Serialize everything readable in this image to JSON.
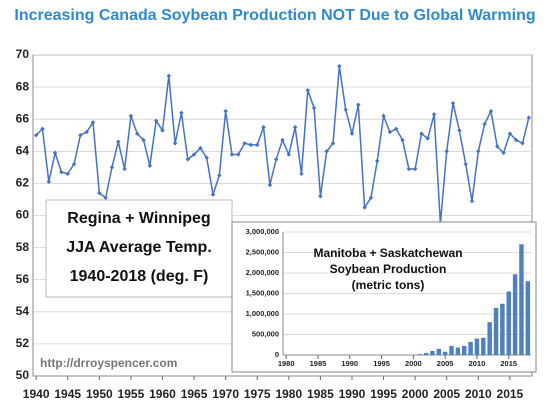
{
  "chart_data": [
    {
      "type": "line",
      "title": "Increasing Canada Soybean Production NOT Due to Global Warming",
      "label_lines": [
        "Regina + Winnipeg",
        "JJA Average Temp.",
        "1940-2018 (deg. F)"
      ],
      "source": "http://drroyspencer.com",
      "x": [
        1940,
        1941,
        1942,
        1943,
        1944,
        1945,
        1946,
        1947,
        1948,
        1949,
        1950,
        1951,
        1952,
        1953,
        1954,
        1955,
        1956,
        1957,
        1958,
        1959,
        1960,
        1961,
        1962,
        1963,
        1964,
        1965,
        1966,
        1967,
        1968,
        1969,
        1970,
        1971,
        1972,
        1973,
        1974,
        1975,
        1976,
        1977,
        1978,
        1979,
        1980,
        1981,
        1982,
        1983,
        1984,
        1985,
        1986,
        1987,
        1988,
        1989,
        1990,
        1991,
        1992,
        1993,
        1994,
        1995,
        1996,
        1997,
        1998,
        1999,
        2000,
        2001,
        2002,
        2003,
        2004,
        2005,
        2006,
        2007,
        2008,
        2009,
        2010,
        2011,
        2012,
        2013,
        2014,
        2015,
        2016,
        2017,
        2018
      ],
      "values": [
        65.0,
        65.4,
        62.1,
        63.9,
        62.7,
        62.6,
        63.2,
        65.0,
        65.2,
        65.8,
        61.4,
        61.1,
        63.0,
        64.6,
        62.9,
        66.2,
        65.1,
        64.7,
        63.1,
        65.9,
        65.3,
        68.7,
        64.5,
        66.4,
        63.5,
        63.8,
        64.2,
        63.6,
        61.3,
        62.5,
        66.5,
        63.8,
        63.8,
        64.5,
        64.4,
        64.4,
        65.5,
        61.9,
        63.5,
        64.7,
        63.8,
        65.5,
        62.6,
        67.8,
        66.7,
        61.2,
        64.0,
        64.5,
        69.3,
        66.6,
        65.1,
        66.9,
        60.5,
        61.1,
        63.4,
        66.2,
        65.2,
        65.4,
        64.7,
        62.9,
        62.9,
        65.1,
        64.8,
        66.3,
        59.5,
        64.0,
        67.0,
        65.3,
        63.2,
        60.9,
        64.0,
        65.7,
        66.5,
        64.3,
        63.9,
        65.1,
        64.7,
        64.5,
        66.1
      ],
      "color": "#4472c4",
      "xlim": [
        1939.5,
        2018.5
      ],
      "xticks": [
        1940,
        1945,
        1950,
        1955,
        1960,
        1965,
        1970,
        1975,
        1980,
        1985,
        1990,
        1995,
        2000,
        2005,
        2010,
        2015
      ],
      "ylim": [
        50,
        70
      ],
      "yticks": [
        50,
        52,
        54,
        56,
        58,
        60,
        62,
        64,
        66,
        68,
        70
      ],
      "grid": true
    },
    {
      "type": "bar",
      "title": [
        "Manitoba + Saskatchewan",
        "Soybean Production",
        "(metric tons)"
      ],
      "x": [
        1980,
        1981,
        1982,
        1983,
        1984,
        1985,
        1986,
        1987,
        1988,
        1989,
        1990,
        1991,
        1992,
        1993,
        1994,
        1995,
        1996,
        1997,
        1998,
        1999,
        2000,
        2001,
        2002,
        2003,
        2004,
        2005,
        2006,
        2007,
        2008,
        2009,
        2010,
        2011,
        2012,
        2013,
        2014,
        2015,
        2016,
        2017,
        2018
      ],
      "values": [
        0,
        0,
        0,
        0,
        0,
        0,
        0,
        0,
        0,
        0,
        0,
        0,
        0,
        0,
        0,
        0,
        0,
        0,
        0,
        0,
        0,
        20000,
        50000,
        100000,
        150000,
        80000,
        220000,
        180000,
        220000,
        320000,
        400000,
        420000,
        800000,
        1150000,
        1250000,
        1550000,
        1970000,
        2700000,
        1800000
      ],
      "color": "#4f81bd",
      "xlim": [
        1979.5,
        2018.5
      ],
      "xticks": [
        1980,
        1985,
        1990,
        1995,
        2000,
        2005,
        2010,
        2015
      ],
      "ylim": [
        0,
        3000000
      ],
      "yticks": [
        0,
        {
          "value": 500000,
          "label": "500,000"
        },
        {
          "value": 1000000,
          "label": "1,000,000"
        },
        {
          "value": 1500000,
          "label": "1,500,000"
        },
        {
          "value": 2000000,
          "label": "2,000,000"
        },
        {
          "value": 2500000,
          "label": "2,500,000"
        },
        {
          "value": 3000000,
          "label": "3,000,000"
        }
      ],
      "grid": true
    }
  ]
}
